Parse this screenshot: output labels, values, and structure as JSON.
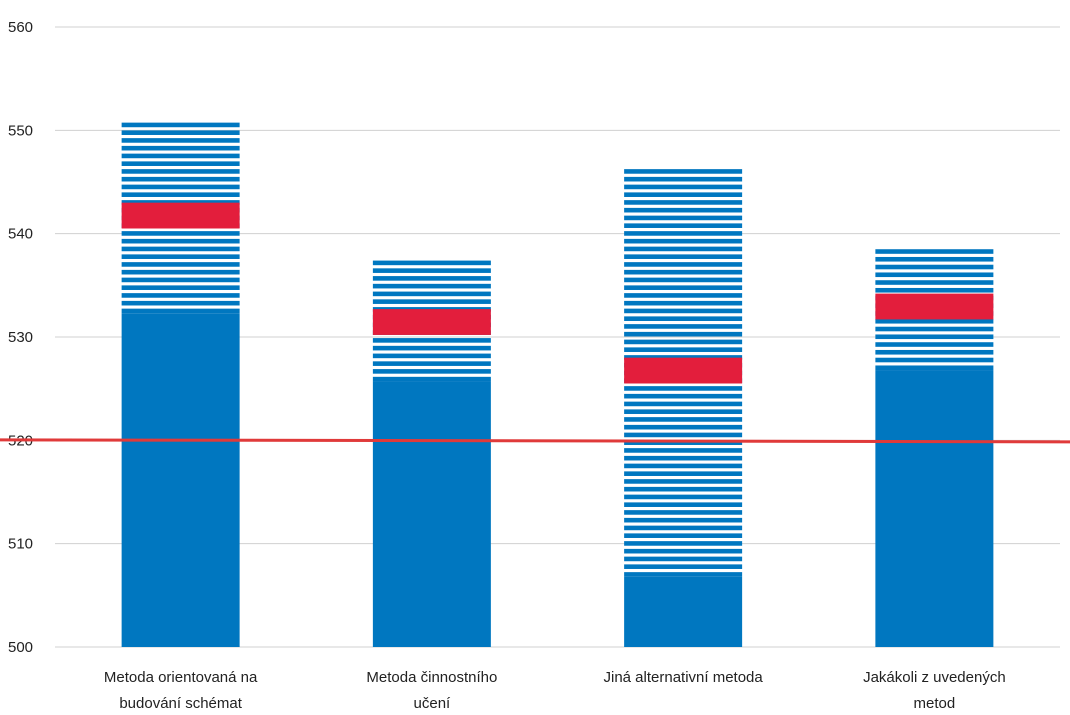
{
  "chart_data": {
    "type": "bar",
    "title": "",
    "xlabel": "",
    "ylabel": "",
    "ylim": [
      500,
      560
    ],
    "yticks": [
      500,
      510,
      520,
      530,
      540,
      550,
      560
    ],
    "grid": true,
    "categories": [
      [
        "Metoda orientovaná na",
        "budování schémat"
      ],
      [
        "Metoda činnostního",
        "učení"
      ],
      [
        "Jiná alternativní metoda"
      ],
      [
        "Jakákoli z uvedených",
        "metod"
      ]
    ],
    "bars": [
      {
        "solid_top": 532.3,
        "range_low": 532.3,
        "range_high": 551.2,
        "mean_low": 540.5,
        "mean_high": 543.0
      },
      {
        "solid_top": 525.7,
        "range_low": 525.7,
        "range_high": 537.5,
        "mean_low": 530.2,
        "mean_high": 532.7
      },
      {
        "solid_top": 506.8,
        "range_low": 506.8,
        "range_high": 546.8,
        "mean_low": 525.5,
        "mean_high": 528.0
      },
      {
        "solid_top": 526.8,
        "range_low": 526.8,
        "range_high": 539.0,
        "mean_low": 531.7,
        "mean_high": 534.2
      }
    ],
    "reference_line": {
      "value": 520
    },
    "colors": {
      "bar": "#0077c0",
      "mean_band": "#e31e3c",
      "reference": "#e03a3a",
      "grid": "#d0d0d0",
      "text": "#222222"
    }
  }
}
